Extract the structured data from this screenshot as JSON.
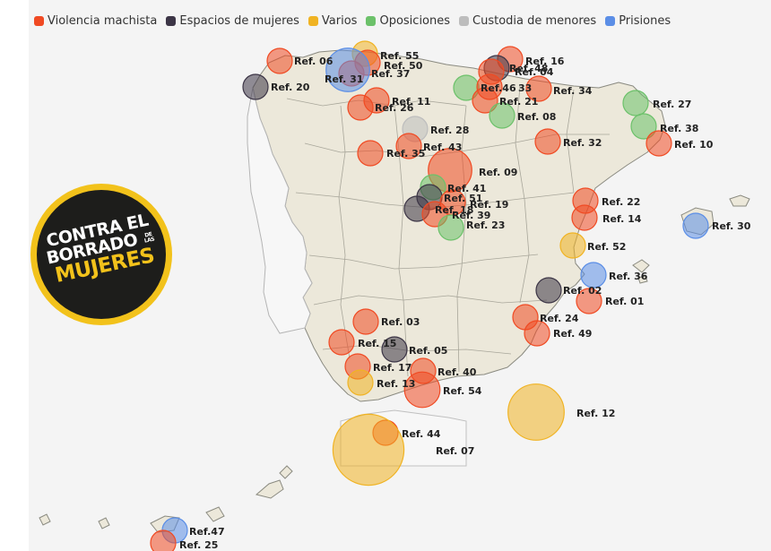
{
  "legend": {
    "items": [
      {
        "label": "Violencia machista",
        "color": "#f04a23",
        "icon": "square"
      },
      {
        "label": "Espacios de mujeres",
        "color": "#3c3546",
        "icon": "square"
      },
      {
        "label": "Varios",
        "color": "#f0b323",
        "icon": "square"
      },
      {
        "label": "Oposiciones",
        "color": "#6cc16a",
        "icon": "square"
      },
      {
        "label": "Custodia de menores",
        "color": "#bdbdbd",
        "icon": "square"
      },
      {
        "label": "Prisiones",
        "color": "#5b8ee6",
        "icon": "square"
      }
    ]
  },
  "badge": {
    "line1": "CONTRA EL",
    "line2": "BORRADO",
    "small": "DE LAS",
    "line3": "MUJERES",
    "colors": {
      "ring": "#f2c21b",
      "fill": "#1d1d1b"
    }
  },
  "markers": [
    {
      "label": "Ref. 06",
      "category": "Violencia machista",
      "size": 1
    },
    {
      "label": "Ref. 55",
      "category": "Varios",
      "size": 1
    },
    {
      "label": "Ref. 50",
      "category": "Violencia machista",
      "size": 1
    },
    {
      "label": "Ref. 37",
      "category": "Violencia machista",
      "size": 1
    },
    {
      "label": "Ref. 31",
      "category": "Prisiones",
      "size": 3
    },
    {
      "label": "Ref. 20",
      "category": "Espacios de mujeres",
      "size": 1
    },
    {
      "label": "Ref. 11",
      "category": "Violencia machista",
      "size": 1
    },
    {
      "label": "Ref. 26",
      "category": "Violencia machista",
      "size": 1
    },
    {
      "label": "Ref. 16",
      "category": "Violencia machista",
      "size": 1
    },
    {
      "label": "Ref. 48",
      "category": "Espacios de mujeres",
      "size": 1
    },
    {
      "label": "Ref. 04",
      "category": "Violencia machista",
      "size": 1
    },
    {
      "label": "Ref.46",
      "category": "Oposiciones",
      "size": 1
    },
    {
      "label": "33",
      "category": "Violencia machista",
      "size": 1
    },
    {
      "label": "Ref. 34",
      "category": "Violencia machista",
      "size": 1
    },
    {
      "label": "Ref. 21",
      "category": "Violencia machista",
      "size": 1
    },
    {
      "label": "Ref. 08",
      "category": "Oposiciones",
      "size": 1
    },
    {
      "label": "Ref. 27",
      "category": "Oposiciones",
      "size": 1
    },
    {
      "label": "Ref. 38",
      "category": "Oposiciones",
      "size": 1
    },
    {
      "label": "Ref. 10",
      "category": "Violencia machista",
      "size": 1
    },
    {
      "label": "Ref. 28",
      "category": "Custodia de menores",
      "size": 1
    },
    {
      "label": "Ref. 43",
      "category": "Violencia machista",
      "size": 1
    },
    {
      "label": "Ref. 35",
      "category": "Violencia machista",
      "size": 1
    },
    {
      "label": "Ref. 32",
      "category": "Violencia machista",
      "size": 1
    },
    {
      "label": "Ref. 09",
      "category": "Violencia machista",
      "size": 3
    },
    {
      "label": "Ref. 41",
      "category": "Oposiciones",
      "size": 1
    },
    {
      "label": "Ref. 51",
      "category": "Espacios de mujeres",
      "size": 1
    },
    {
      "label": "Ref. 19",
      "category": "Violencia machista",
      "size": 1
    },
    {
      "label": "Ref. 18",
      "category": "Espacios de mujeres",
      "size": 1
    },
    {
      "label": "Ref. 39",
      "category": "Violencia machista",
      "size": 1
    },
    {
      "label": "Ref. 23",
      "category": "Oposiciones",
      "size": 1
    },
    {
      "label": "Ref. 22",
      "category": "Violencia machista",
      "size": 1
    },
    {
      "label": "Ref. 14",
      "category": "Violencia machista",
      "size": 1
    },
    {
      "label": "Ref. 30",
      "category": "Prisiones",
      "size": 1
    },
    {
      "label": "Ref. 52",
      "category": "Varios",
      "size": 1
    },
    {
      "label": "Ref. 36",
      "category": "Prisiones",
      "size": 1
    },
    {
      "label": "Ref. 02",
      "category": "Espacios de mujeres",
      "size": 1
    },
    {
      "label": "Ref. 01",
      "category": "Violencia machista",
      "size": 1
    },
    {
      "label": "Ref. 03",
      "category": "Violencia machista",
      "size": 1
    },
    {
      "label": "Ref. 24",
      "category": "Violencia machista",
      "size": 1
    },
    {
      "label": "Ref. 49",
      "category": "Violencia machista",
      "size": 1
    },
    {
      "label": "Ref. 15",
      "category": "Violencia machista",
      "size": 1
    },
    {
      "label": "Ref. 05",
      "category": "Espacios de mujeres",
      "size": 1
    },
    {
      "label": "Ref. 17",
      "category": "Violencia machista",
      "size": 1
    },
    {
      "label": "Ref. 40",
      "category": "Violencia machista",
      "size": 1
    },
    {
      "label": "Ref. 13",
      "category": "Varios",
      "size": 1
    },
    {
      "label": "Ref. 54",
      "category": "Violencia machista",
      "size": 2
    },
    {
      "label": "Ref. 12",
      "category": "Varios",
      "size": 5
    },
    {
      "label": "Ref. 44",
      "category": "Violencia machista",
      "size": 1
    },
    {
      "label": "Ref. 07",
      "category": "Varios",
      "size": 8
    },
    {
      "label": "Ref.47",
      "category": "Prisiones",
      "size": 1
    },
    {
      "label": "Ref. 25",
      "category": "Violencia machista",
      "size": 1
    }
  ]
}
